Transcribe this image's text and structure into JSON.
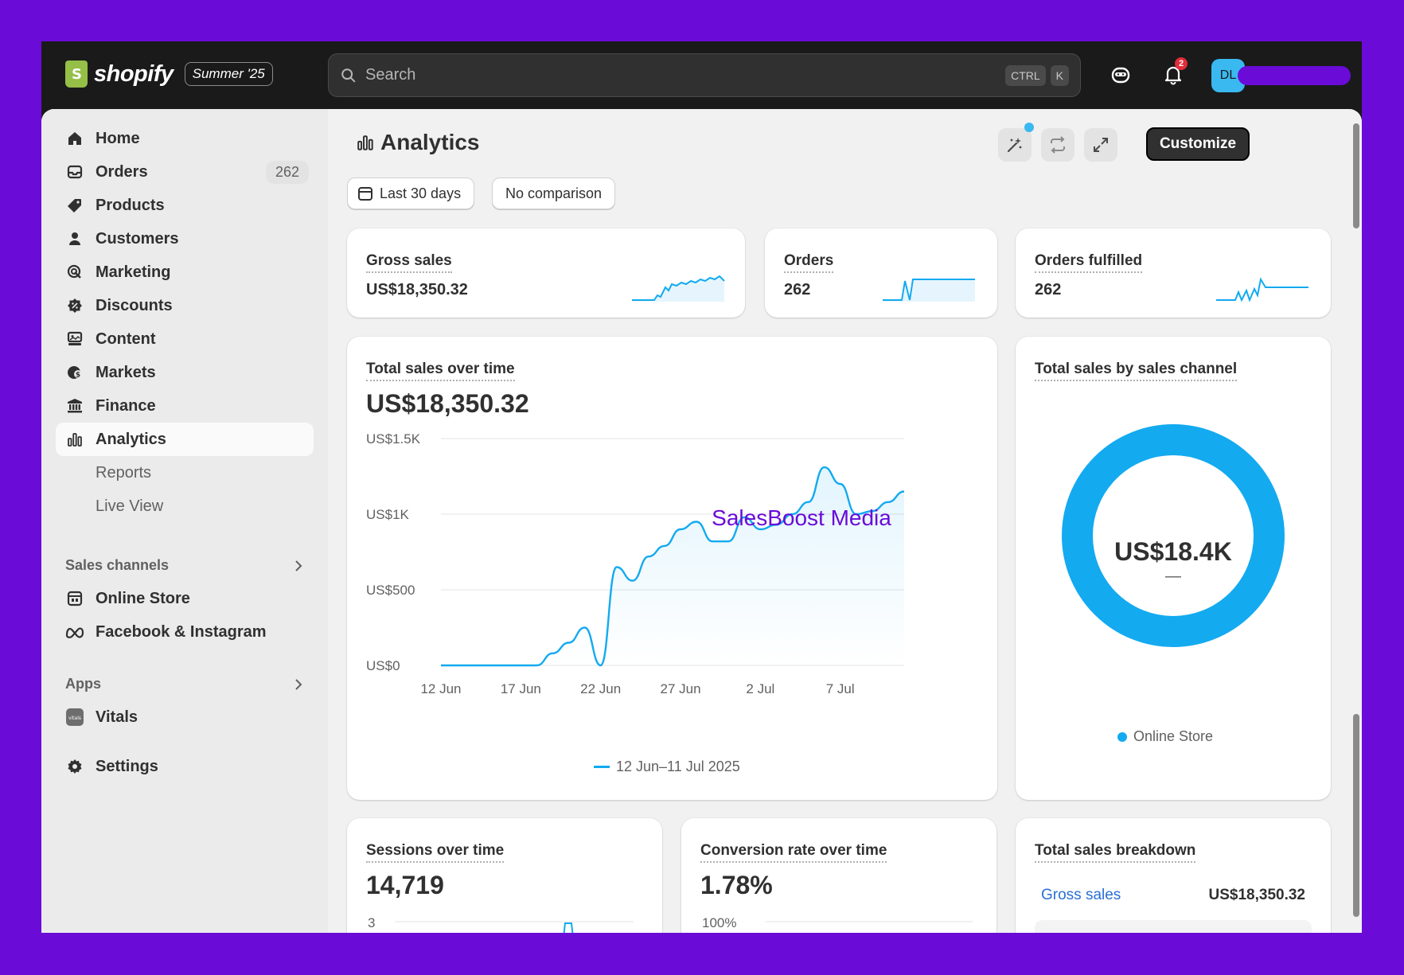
{
  "header": {
    "brand": "shopify",
    "edition_badge": "Summer '25",
    "search_placeholder": "Search",
    "shortcut_keys": [
      "CTRL",
      "K"
    ],
    "notification_count": "2",
    "avatar_initials": "DL"
  },
  "sidebar": {
    "items": [
      {
        "label": "Home",
        "icon": "home-icon"
      },
      {
        "label": "Orders",
        "icon": "inbox-icon",
        "count": "262"
      },
      {
        "label": "Products",
        "icon": "tag-icon"
      },
      {
        "label": "Customers",
        "icon": "person-icon"
      },
      {
        "label": "Marketing",
        "icon": "target-icon"
      },
      {
        "label": "Discounts",
        "icon": "discount-icon"
      },
      {
        "label": "Content",
        "icon": "content-icon"
      },
      {
        "label": "Markets",
        "icon": "globe-icon"
      },
      {
        "label": "Finance",
        "icon": "bank-icon"
      },
      {
        "label": "Analytics",
        "icon": "bar-chart-icon"
      }
    ],
    "sub_items": [
      "Reports",
      "Live View"
    ],
    "sales_channels_heading": "Sales channels",
    "sales_channels": [
      {
        "label": "Online Store",
        "icon": "store-icon"
      },
      {
        "label": "Facebook & Instagram",
        "icon": "meta-icon"
      }
    ],
    "apps_heading": "Apps",
    "apps": [
      {
        "label": "Vitals",
        "icon": "vitals-app-icon"
      }
    ],
    "settings_label": "Settings"
  },
  "main": {
    "title": "Analytics",
    "customize_label": "Customize",
    "date_range_label": "Last 30 days",
    "comparison_label": "No comparison"
  },
  "metrics": {
    "gross_sales": {
      "title": "Gross sales",
      "value": "US$18,350.32"
    },
    "orders": {
      "title": "Orders",
      "value": "262"
    },
    "orders_fulfilled": {
      "title": "Orders fulfilled",
      "value": "262"
    }
  },
  "sales_over_time": {
    "title": "Total sales over time",
    "value": "US$18,350.32",
    "legend": "12 Jun–11 Jul 2025",
    "watermark": "SalesBoost Media"
  },
  "sales_by_channel": {
    "title": "Total sales by sales channel",
    "center_value": "US$18.4K",
    "center_sub": "—",
    "legend": "Online Store"
  },
  "sessions": {
    "title": "Sessions over time",
    "value": "14,719",
    "ytick": "3"
  },
  "conversion": {
    "title": "Conversion rate over time",
    "value": "1.78%",
    "ytick": "100%"
  },
  "breakdown": {
    "title": "Total sales breakdown",
    "row_label": "Gross sales",
    "row_value": "US$18,350.32"
  },
  "colors": {
    "accent": "#13aaf0",
    "brand_bg": "#6a0bd8"
  },
  "chart_data": [
    {
      "type": "line",
      "title": "Total sales over time",
      "xlabel": "",
      "ylabel": "",
      "x_ticks": [
        "12 Jun",
        "17 Jun",
        "22 Jun",
        "27 Jun",
        "2 Jul",
        "7 Jul"
      ],
      "y_ticks": [
        "US$0",
        "US$500",
        "US$1K",
        "US$1.5K"
      ],
      "ylim": [
        0,
        1500
      ],
      "grid": true,
      "series": [
        {
          "name": "12 Jun–11 Jul 2025",
          "x": [
            "12 Jun",
            "13 Jun",
            "14 Jun",
            "15 Jun",
            "16 Jun",
            "17 Jun",
            "18 Jun",
            "19 Jun",
            "20 Jun",
            "21 Jun",
            "22 Jun",
            "23 Jun",
            "24 Jun",
            "25 Jun",
            "26 Jun",
            "27 Jun",
            "28 Jun",
            "29 Jun",
            "30 Jun",
            "1 Jul",
            "2 Jul",
            "3 Jul",
            "4 Jul",
            "5 Jul",
            "6 Jul",
            "7 Jul",
            "8 Jul",
            "9 Jul",
            "10 Jul",
            "11 Jul"
          ],
          "values": [
            0,
            0,
            0,
            0,
            0,
            0,
            0,
            80,
            150,
            250,
            0,
            650,
            560,
            720,
            790,
            900,
            950,
            820,
            820,
            980,
            900,
            930,
            1000,
            1080,
            1310,
            1200,
            1000,
            1020,
            1080,
            1150
          ]
        }
      ]
    },
    {
      "type": "pie",
      "title": "Total sales by sales channel",
      "categories": [
        "Online Store"
      ],
      "values": [
        18350.32
      ]
    }
  ]
}
